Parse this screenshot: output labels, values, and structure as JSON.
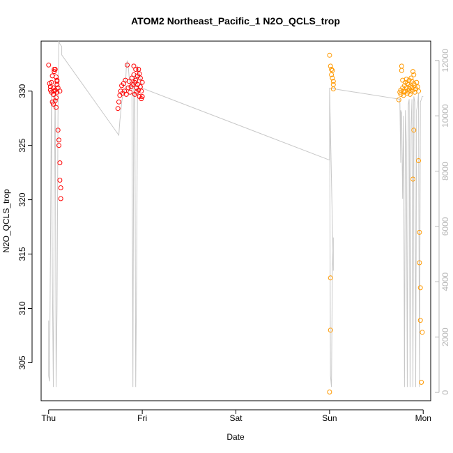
{
  "chart_data": {
    "type": "scatter",
    "title": "ATOM2 Northeast_Pacific_1 N2O_QCLS_trop",
    "xlabel": "Date",
    "ylabel": "N2O_QCLS_trop",
    "x_ticks": [
      "Thu",
      "Fri",
      "Sat",
      "Sun",
      "Mon"
    ],
    "xlim": [
      -0.08,
      4.08
    ],
    "ylim": [
      301.5,
      334.6
    ],
    "y_ticks": [
      305,
      310,
      315,
      320,
      325,
      330
    ],
    "y2lim": [
      -300,
      12700
    ],
    "y2_ticks": [
      0,
      2000,
      4000,
      6000,
      8000,
      10000,
      12000
    ],
    "grid": false,
    "colors": {
      "group1": "#ff0000",
      "group2": "#ff9900",
      "altitude_line": "#c8c8c8"
    },
    "series": [
      {
        "group": 1,
        "points": [
          [
            0.0,
            332.4
          ],
          [
            0.01,
            330.7
          ],
          [
            0.02,
            330.4
          ],
          [
            0.02,
            330.1
          ],
          [
            0.03,
            329.9
          ],
          [
            0.03,
            330.8
          ],
          [
            0.04,
            331.4
          ],
          [
            0.04,
            329.0
          ],
          [
            0.05,
            328.8
          ],
          [
            0.05,
            329.7
          ],
          [
            0.05,
            330.3
          ],
          [
            0.06,
            330.0
          ],
          [
            0.06,
            332.0
          ],
          [
            0.06,
            331.8
          ],
          [
            0.07,
            332.0
          ],
          [
            0.07,
            329.1
          ],
          [
            0.07,
            330.1
          ],
          [
            0.08,
            331.3
          ],
          [
            0.08,
            329.4
          ],
          [
            0.08,
            328.5
          ],
          [
            0.09,
            330.9
          ],
          [
            0.09,
            329.9
          ],
          [
            0.09,
            330.6
          ],
          [
            0.09,
            331.0
          ],
          [
            0.1,
            330.3
          ],
          [
            0.1,
            326.4
          ],
          [
            0.11,
            325.5
          ],
          [
            0.11,
            325.0
          ],
          [
            0.12,
            330.0
          ],
          [
            0.12,
            323.4
          ],
          [
            0.12,
            321.8
          ],
          [
            0.13,
            321.1
          ],
          [
            0.13,
            320.1
          ],
          [
            0.74,
            328.4
          ],
          [
            0.75,
            329.0
          ],
          [
            0.76,
            329.6
          ],
          [
            0.77,
            330.0
          ],
          [
            0.78,
            330.5
          ],
          [
            0.79,
            329.8
          ],
          [
            0.8,
            330.7
          ],
          [
            0.81,
            330.0
          ],
          [
            0.82,
            331.0
          ],
          [
            0.83,
            329.7
          ],
          [
            0.84,
            332.4
          ],
          [
            0.85,
            330.3
          ],
          [
            0.86,
            330.9
          ],
          [
            0.87,
            329.9
          ],
          [
            0.88,
            330.4
          ],
          [
            0.89,
            331.2
          ],
          [
            0.9,
            330.6
          ],
          [
            0.91,
            332.3
          ],
          [
            0.91,
            331.5
          ],
          [
            0.92,
            330.8
          ],
          [
            0.92,
            329.7
          ],
          [
            0.93,
            332.0
          ],
          [
            0.93,
            331.0
          ],
          [
            0.94,
            330.3
          ],
          [
            0.94,
            329.9
          ],
          [
            0.95,
            331.4
          ],
          [
            0.95,
            330.6
          ],
          [
            0.96,
            332.0
          ],
          [
            0.96,
            330.1
          ],
          [
            0.97,
            331.6
          ],
          [
            0.97,
            329.5
          ],
          [
            0.98,
            331.2
          ],
          [
            0.98,
            330.4
          ],
          [
            0.99,
            330.0
          ],
          [
            0.99,
            329.3
          ],
          [
            1.0,
            330.8
          ],
          [
            1.0,
            329.5
          ]
        ]
      },
      {
        "group": 2,
        "points": [
          [
            3.0,
            333.3
          ],
          [
            3.01,
            332.3
          ],
          [
            3.02,
            331.5
          ],
          [
            3.02,
            332.0
          ],
          [
            3.03,
            331.9
          ],
          [
            3.03,
            331.2
          ],
          [
            3.04,
            330.9
          ],
          [
            3.04,
            330.6
          ],
          [
            3.04,
            330.2
          ],
          [
            3.01,
            312.8
          ],
          [
            3.01,
            308.0
          ],
          [
            3.0,
            302.3
          ],
          [
            3.74,
            329.2
          ],
          [
            3.75,
            329.9
          ],
          [
            3.76,
            330.1
          ],
          [
            3.76,
            329.7
          ],
          [
            3.77,
            332.3
          ],
          [
            3.77,
            331.9
          ],
          [
            3.78,
            331.0
          ],
          [
            3.78,
            330.3
          ],
          [
            3.79,
            329.6
          ],
          [
            3.79,
            330.0
          ],
          [
            3.8,
            330.5
          ],
          [
            3.8,
            329.9
          ],
          [
            3.81,
            330.8
          ],
          [
            3.81,
            330.0
          ],
          [
            3.82,
            330.3
          ],
          [
            3.82,
            331.1
          ],
          [
            3.83,
            330.7
          ],
          [
            3.83,
            329.8
          ],
          [
            3.84,
            330.0
          ],
          [
            3.84,
            330.6
          ],
          [
            3.85,
            331.0
          ],
          [
            3.85,
            330.2
          ],
          [
            3.86,
            329.7
          ],
          [
            3.86,
            330.4
          ],
          [
            3.87,
            331.2
          ],
          [
            3.87,
            330.0
          ],
          [
            3.88,
            330.9
          ],
          [
            3.88,
            330.3
          ],
          [
            3.89,
            331.8
          ],
          [
            3.89,
            330.1
          ],
          [
            3.9,
            331.5
          ],
          [
            3.9,
            330.7
          ],
          [
            3.91,
            330.5
          ],
          [
            3.91,
            329.9
          ],
          [
            3.92,
            330.2
          ],
          [
            3.93,
            330.8
          ],
          [
            3.94,
            330.4
          ],
          [
            3.95,
            330.0
          ],
          [
            3.9,
            326.4
          ],
          [
            3.89,
            321.9
          ],
          [
            3.95,
            323.6
          ],
          [
            3.96,
            317.0
          ],
          [
            3.97,
            311.9
          ],
          [
            3.97,
            308.9
          ],
          [
            3.96,
            314.2
          ],
          [
            3.98,
            303.2
          ],
          [
            3.99,
            307.8
          ]
        ]
      }
    ],
    "altitude_line": {
      "axis": "right",
      "points": [
        [
          0.0,
          2600
        ],
        [
          0.0,
          600
        ],
        [
          0.01,
          400
        ],
        [
          0.02,
          5200
        ],
        [
          0.03,
          11000
        ],
        [
          0.04,
          4200
        ],
        [
          0.05,
          200
        ],
        [
          0.06,
          7000
        ],
        [
          0.07,
          11200
        ],
        [
          0.08,
          200
        ],
        [
          0.09,
          3000
        ],
        [
          0.1,
          10000
        ],
        [
          0.11,
          12700
        ],
        [
          0.12,
          12600
        ],
        [
          0.14,
          12500
        ],
        [
          0.14,
          12200
        ],
        [
          0.75,
          9300
        ],
        [
          0.76,
          9800
        ],
        [
          0.77,
          10100
        ],
        [
          0.78,
          10500
        ],
        [
          0.79,
          10700
        ],
        [
          0.8,
          10800
        ],
        [
          0.82,
          11000
        ],
        [
          0.83,
          11800
        ],
        [
          0.84,
          12000
        ],
        [
          0.85,
          11800
        ],
        [
          0.86,
          11400
        ],
        [
          0.87,
          11100
        ],
        [
          0.88,
          11000
        ],
        [
          0.89,
          11000
        ],
        [
          0.9,
          200
        ],
        [
          0.91,
          11200
        ],
        [
          0.92,
          11500
        ],
        [
          0.93,
          200
        ],
        [
          0.94,
          4300
        ],
        [
          0.95,
          11800
        ],
        [
          1.0,
          11000
        ],
        [
          3.0,
          8400
        ],
        [
          3.0,
          11000
        ],
        [
          3.01,
          600
        ],
        [
          3.02,
          200
        ],
        [
          3.03,
          4500
        ],
        [
          3.04,
          5600
        ],
        [
          3.04,
          4400
        ],
        [
          3.0,
          11000
        ],
        [
          3.75,
          10600
        ],
        [
          3.76,
          8300
        ],
        [
          3.76,
          10200
        ],
        [
          3.77,
          10100
        ],
        [
          3.78,
          7000
        ],
        [
          3.79,
          10000
        ],
        [
          3.8,
          200
        ],
        [
          3.81,
          10200
        ],
        [
          3.82,
          9000
        ],
        [
          3.83,
          200
        ],
        [
          3.84,
          10400
        ],
        [
          3.85,
          10600
        ],
        [
          3.86,
          200
        ],
        [
          3.87,
          9600
        ],
        [
          3.88,
          10600
        ],
        [
          3.89,
          200
        ],
        [
          3.9,
          10700
        ],
        [
          3.91,
          10500
        ],
        [
          3.92,
          200
        ],
        [
          3.93,
          10200
        ],
        [
          3.94,
          10400
        ],
        [
          3.95,
          10800
        ],
        [
          3.96,
          200
        ],
        [
          3.97,
          10500
        ],
        [
          3.98,
          10600
        ],
        [
          3.99,
          10700
        ],
        [
          4.0,
          10700
        ]
      ]
    }
  }
}
